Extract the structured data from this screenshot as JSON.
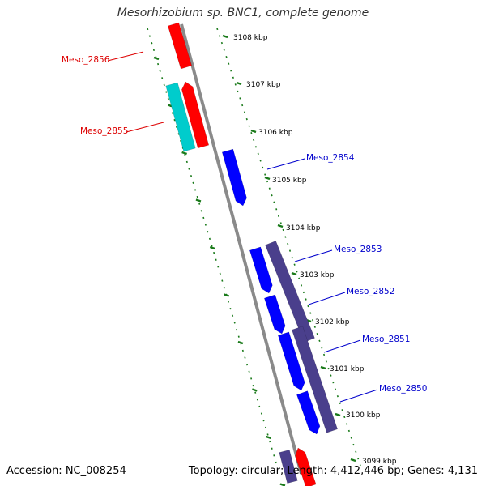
{
  "title": "Mesorhizobium sp. BNC1, complete genome",
  "footer": {
    "accession": "Accession: NC_008254",
    "summary": "Topology: circular; Length: 4,412,446 bp; Genes: 4,131"
  },
  "colors": {
    "backbone": "#8a8a8a",
    "forward_gene": "#ff0000",
    "reverse_gene": "#0000ff",
    "cyan_gene": "#00cccc",
    "cds_track": "#4a3f8c",
    "tick": "#1a7a1a",
    "label_red": "#dd0000",
    "label_blue": "#0000cc"
  },
  "chart_data": {
    "type": "genome-map",
    "unit": "kbp",
    "ticks": [
      {
        "kbp": 3108,
        "label": "3108 kbp"
      },
      {
        "kbp": 3107,
        "label": "3107 kbp"
      },
      {
        "kbp": 3106,
        "label": "3106 kbp"
      },
      {
        "kbp": 3105,
        "label": "3105 kbp"
      },
      {
        "kbp": 3104,
        "label": "3104 kbp"
      },
      {
        "kbp": 3103,
        "label": "3103 kbp"
      },
      {
        "kbp": 3102,
        "label": "3102 kbp"
      },
      {
        "kbp": 3101,
        "label": "3101 kbp"
      },
      {
        "kbp": 3100,
        "label": "3100 kbp"
      },
      {
        "kbp": 3099,
        "label": "3099 kbp"
      }
    ],
    "gene_labels": [
      {
        "name": "Meso_2856",
        "strand": "forward"
      },
      {
        "name": "Meso_2855",
        "strand": "forward"
      },
      {
        "name": "Meso_2854",
        "strand": "reverse"
      },
      {
        "name": "Meso_2853",
        "strand": "reverse"
      },
      {
        "name": "Meso_2852",
        "strand": "reverse"
      },
      {
        "name": "Meso_2851",
        "strand": "reverse"
      },
      {
        "name": "Meso_2850",
        "strand": "reverse"
      }
    ]
  }
}
